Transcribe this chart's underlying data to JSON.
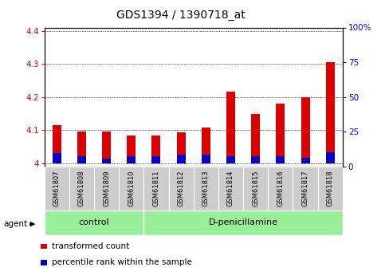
{
  "title": "GDS1394 / 1390718_at",
  "samples": [
    "GSM61807",
    "GSM61808",
    "GSM61809",
    "GSM61810",
    "GSM61811",
    "GSM61812",
    "GSM61813",
    "GSM61814",
    "GSM61815",
    "GSM61816",
    "GSM61817",
    "GSM61818"
  ],
  "transformed_counts": [
    4.115,
    4.095,
    4.095,
    4.083,
    4.083,
    4.093,
    4.108,
    4.215,
    4.148,
    4.18,
    4.2,
    4.305
  ],
  "percentile_ranks": [
    7,
    5,
    3,
    5,
    5,
    6,
    6,
    5,
    5,
    5,
    4,
    8
  ],
  "base_value": 4.0,
  "ylim_left": [
    3.99,
    4.41
  ],
  "ylim_right": [
    0,
    100
  ],
  "yticks_left": [
    4.0,
    4.1,
    4.2,
    4.3,
    4.4
  ],
  "ytick_labels_left": [
    "4",
    "4.1",
    "4.2",
    "4.3",
    "4.4"
  ],
  "yticks_right": [
    0,
    25,
    50,
    75,
    100
  ],
  "ytick_labels_right": [
    "0",
    "25",
    "50",
    "75",
    "100%"
  ],
  "groups": [
    {
      "label": "control",
      "start": 0,
      "end": 4
    },
    {
      "label": "D-penicillamine",
      "start": 4,
      "end": 12
    }
  ],
  "agent_label": "agent",
  "bar_color_red": "#dd0000",
  "bar_color_blue": "#0000cc",
  "group_bg_color": "#99ee99",
  "sample_bg_color": "#cccccc",
  "legend_items": [
    {
      "color": "#dd0000",
      "label": "transformed count"
    },
    {
      "color": "#0000cc",
      "label": "percentile rank within the sample"
    }
  ],
  "bar_width": 0.35,
  "grid_color": "#000000",
  "title_fontsize": 10,
  "tick_fontsize": 7.5,
  "label_fontsize": 8
}
